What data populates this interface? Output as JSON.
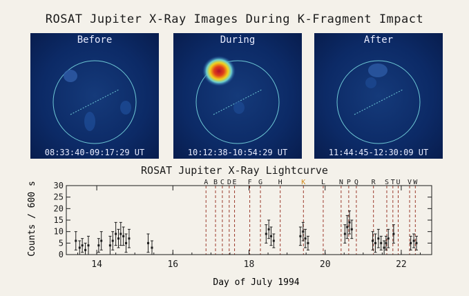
{
  "title": "ROSAT Jupiter X-Ray Images During K-Fragment Impact",
  "panels": [
    {
      "label": "Before",
      "time": "08:33:40-09:17:29 UT"
    },
    {
      "label": "During",
      "time": "10:12:38-10:54:29 UT"
    },
    {
      "label": "After",
      "time": "11:44:45-12:30:09 UT"
    }
  ],
  "colors": {
    "ink": "#1a1a1a",
    "impact_line": "#9b3a2c",
    "k_highlight": "#d18a1a",
    "panel_bg": "#0c2a66",
    "limb": "#6fc9d6"
  },
  "chart_data": {
    "type": "scatter",
    "title": "ROSAT Jupiter X-Ray Lightcurve",
    "xlabel": "Day of July 1994",
    "ylabel": "Counts / 600 s",
    "xlim": [
      13.2,
      22.8
    ],
    "ylim": [
      0,
      30
    ],
    "xticks": [
      14,
      16,
      18,
      20,
      22
    ],
    "yticks": [
      0,
      5,
      10,
      15,
      20,
      25,
      30
    ],
    "impacts": [
      {
        "label": "A",
        "x": 16.87
      },
      {
        "label": "B",
        "x": 17.12
      },
      {
        "label": "C",
        "x": 17.3
      },
      {
        "label": "D",
        "x": 17.48
      },
      {
        "label": "E",
        "x": 17.62
      },
      {
        "label": "F",
        "x": 18.02
      },
      {
        "label": "G",
        "x": 18.3
      },
      {
        "label": "H",
        "x": 18.82
      },
      {
        "label": "K",
        "x": 19.43,
        "highlight": true
      },
      {
        "label": "L",
        "x": 19.95
      },
      {
        "label": "N",
        "x": 20.42
      },
      {
        "label": "P",
        "x": 20.62
      },
      {
        "label": "Q",
        "x": 20.82
      },
      {
        "label": "R",
        "x": 21.27
      },
      {
        "label": "S",
        "x": 21.62
      },
      {
        "label": "T",
        "x": 21.78
      },
      {
        "label": "U",
        "x": 21.92
      },
      {
        "label": "V",
        "x": 22.22
      },
      {
        "label": "W",
        "x": 22.37
      }
    ],
    "points": [
      {
        "x": 13.45,
        "y": 6,
        "err": 4
      },
      {
        "x": 13.55,
        "y": 3,
        "err": 3
      },
      {
        "x": 13.62,
        "y": 4,
        "err": 3
      },
      {
        "x": 13.7,
        "y": 2,
        "err": 3
      },
      {
        "x": 13.78,
        "y": 4,
        "err": 4
      },
      {
        "x": 14.05,
        "y": 4,
        "err": 3
      },
      {
        "x": 14.12,
        "y": 6,
        "err": 4
      },
      {
        "x": 14.35,
        "y": 4,
        "err": 4
      },
      {
        "x": 14.42,
        "y": 6,
        "err": 4
      },
      {
        "x": 14.5,
        "y": 9,
        "err": 5
      },
      {
        "x": 14.57,
        "y": 7,
        "err": 4
      },
      {
        "x": 14.63,
        "y": 9,
        "err": 5
      },
      {
        "x": 14.7,
        "y": 8,
        "err": 4
      },
      {
        "x": 14.77,
        "y": 5,
        "err": 4
      },
      {
        "x": 14.85,
        "y": 7,
        "err": 4
      },
      {
        "x": 15.35,
        "y": 5,
        "err": 4
      },
      {
        "x": 15.45,
        "y": 3,
        "err": 3
      },
      {
        "x": 18.45,
        "y": 9,
        "err": 4
      },
      {
        "x": 18.52,
        "y": 11,
        "err": 4
      },
      {
        "x": 18.58,
        "y": 8,
        "err": 4
      },
      {
        "x": 18.65,
        "y": 6,
        "err": 3
      },
      {
        "x": 19.35,
        "y": 8,
        "err": 4
      },
      {
        "x": 19.42,
        "y": 10,
        "err": 4
      },
      {
        "x": 19.48,
        "y": 7,
        "err": 4
      },
      {
        "x": 19.55,
        "y": 5,
        "err": 3
      },
      {
        "x": 20.52,
        "y": 9,
        "err": 4
      },
      {
        "x": 20.58,
        "y": 12,
        "err": 5
      },
      {
        "x": 20.64,
        "y": 14,
        "err": 5
      },
      {
        "x": 20.7,
        "y": 11,
        "err": 4
      },
      {
        "x": 21.25,
        "y": 6,
        "err": 4
      },
      {
        "x": 21.32,
        "y": 5,
        "err": 4
      },
      {
        "x": 21.4,
        "y": 7,
        "err": 4
      },
      {
        "x": 21.47,
        "y": 5,
        "err": 3
      },
      {
        "x": 21.55,
        "y": 3,
        "err": 3
      },
      {
        "x": 21.6,
        "y": 5,
        "err": 3
      },
      {
        "x": 21.66,
        "y": 7,
        "err": 4
      },
      {
        "x": 21.8,
        "y": 9,
        "err": 4
      },
      {
        "x": 22.25,
        "y": 5,
        "err": 3
      },
      {
        "x": 22.33,
        "y": 6,
        "err": 3
      },
      {
        "x": 22.4,
        "y": 5,
        "err": 3
      }
    ]
  }
}
